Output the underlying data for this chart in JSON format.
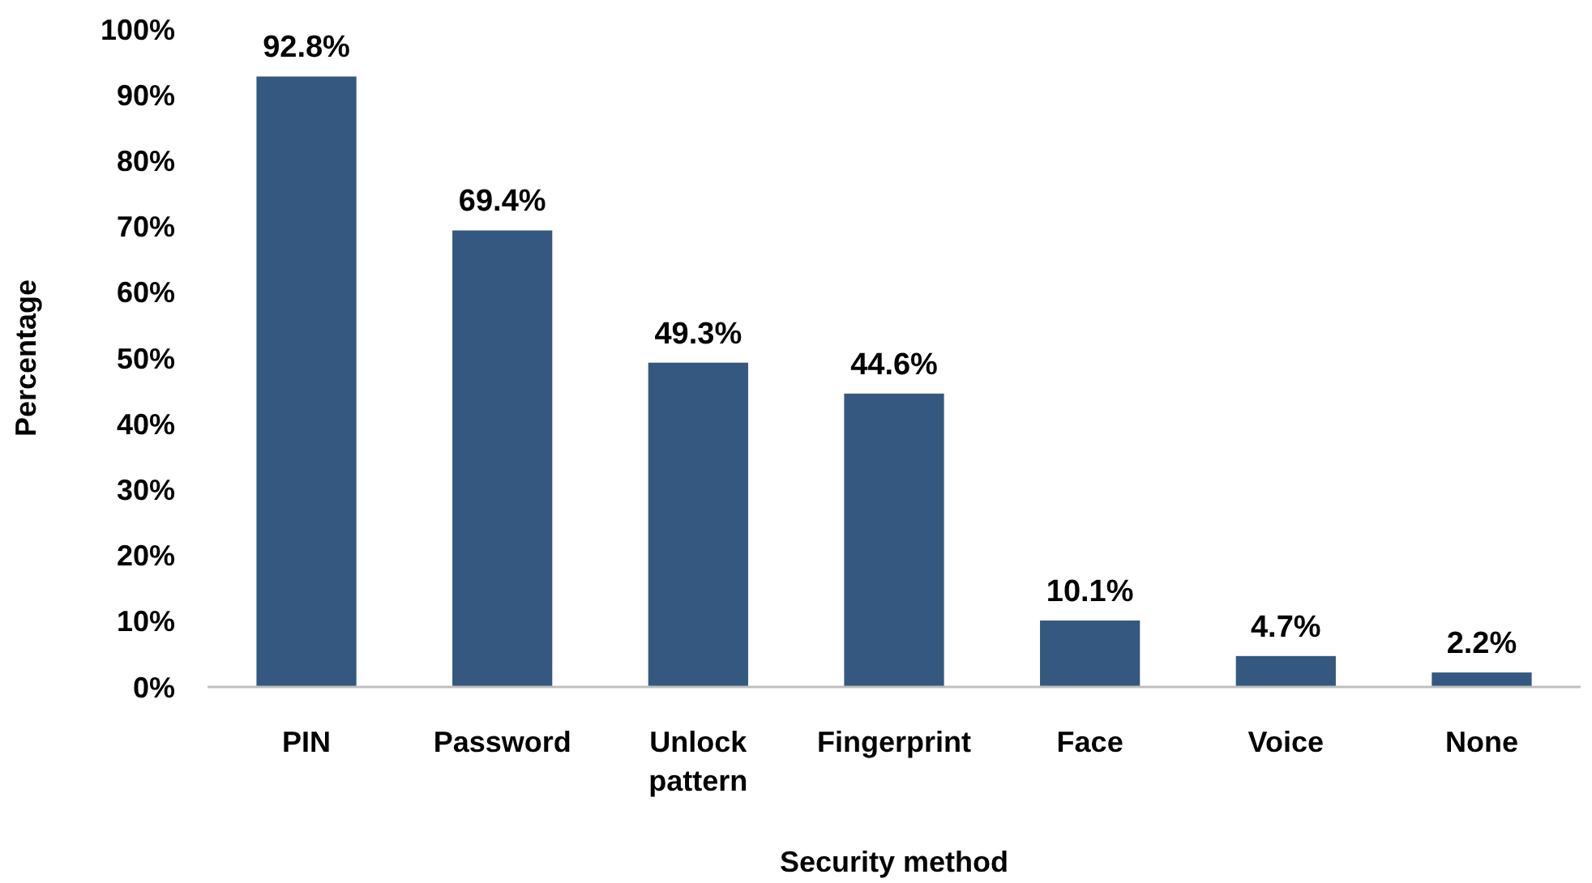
{
  "chart_data": {
    "type": "bar",
    "xlabel": "Security method",
    "ylabel": "Percentage",
    "categories": [
      "PIN",
      "Password",
      "Unlock pattern",
      "Fingerprint",
      "Face",
      "Voice",
      "None"
    ],
    "values": [
      92.8,
      69.4,
      49.3,
      44.6,
      10.1,
      4.7,
      2.2
    ],
    "value_labels": [
      "92.8%",
      "69.4%",
      "49.3%",
      "44.6%",
      "10.1%",
      "4.7%",
      "2.2%"
    ],
    "color": "#34587f",
    "ylim": [
      0,
      100
    ],
    "yticks": [
      {
        "value": 0,
        "label": "0%"
      },
      {
        "value": 10,
        "label": "10%"
      },
      {
        "value": 20,
        "label": "20%"
      },
      {
        "value": 30,
        "label": "30%"
      },
      {
        "value": 40,
        "label": "40%"
      },
      {
        "value": 50,
        "label": "50%"
      },
      {
        "value": 60,
        "label": "60%"
      },
      {
        "value": 70,
        "label": "70%"
      },
      {
        "value": 80,
        "label": "80%"
      },
      {
        "value": 90,
        "label": "90%"
      },
      {
        "value": 100,
        "label": "100%"
      }
    ],
    "grid": false
  }
}
